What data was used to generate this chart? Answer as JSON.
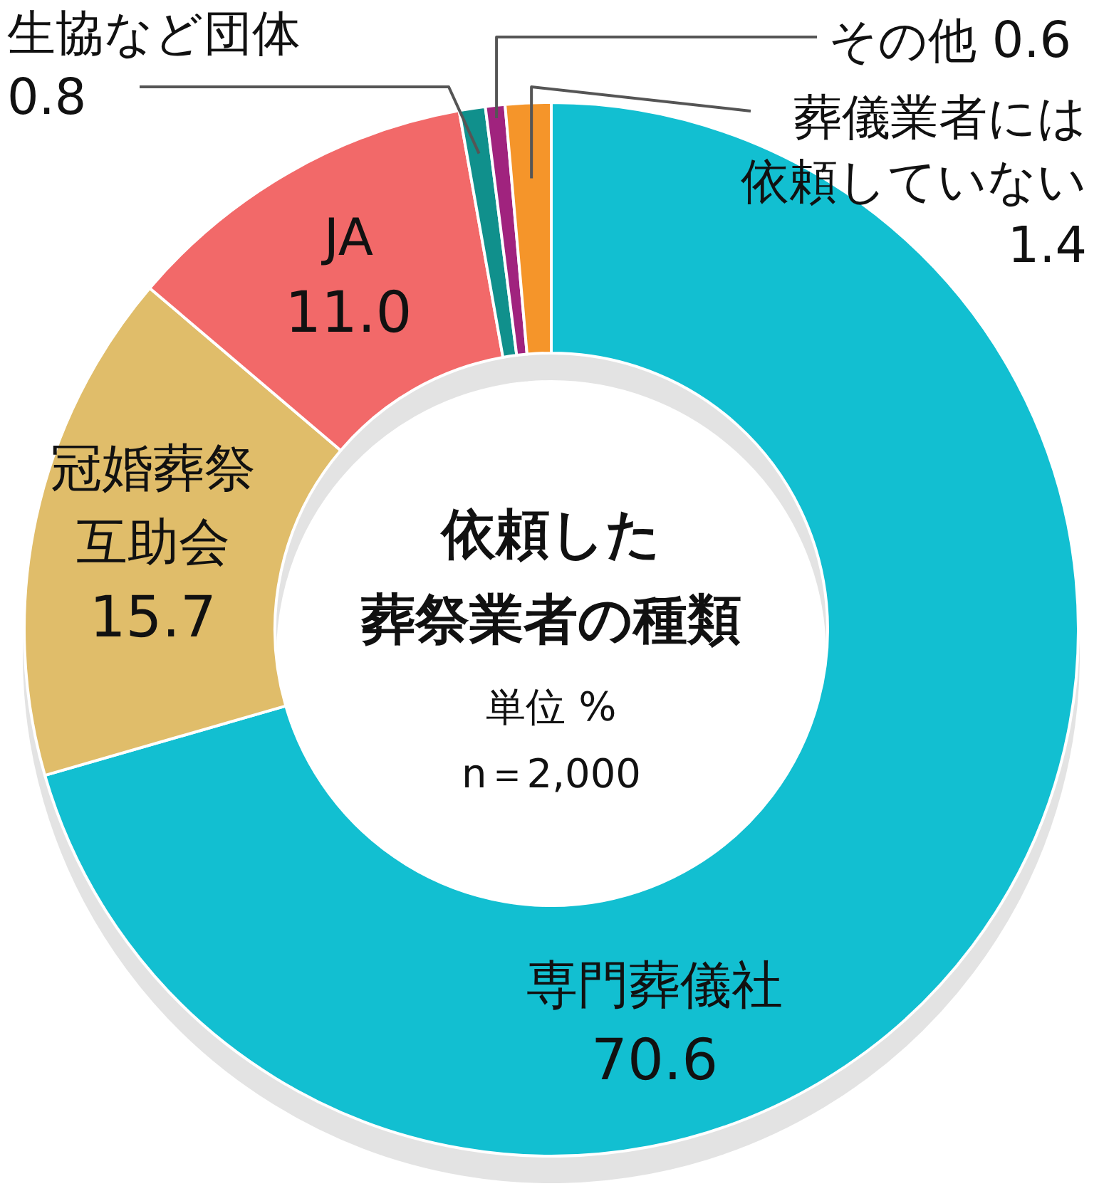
{
  "chart_data": {
    "type": "donut",
    "title": "依頼した葬祭業者の種類",
    "subtitle": "単位 %",
    "annotations": [
      "n＝2,000"
    ],
    "categories": [
      "専門葬儀社",
      "冠婚葬祭互助会",
      "JA",
      "生協など団体",
      "その他",
      "葬儀業者には依頼していない"
    ],
    "values": [
      70.6,
      15.7,
      11.0,
      0.8,
      0.6,
      1.4
    ],
    "value_labels": [
      "70.6",
      "15.7",
      "11.0",
      "0.8",
      "0.6",
      "1.4"
    ],
    "colors": [
      "#12bfd1",
      "#e0bd6a",
      "#f26969",
      "#10908c",
      "#a0237e",
      "#f5952a"
    ]
  }
}
